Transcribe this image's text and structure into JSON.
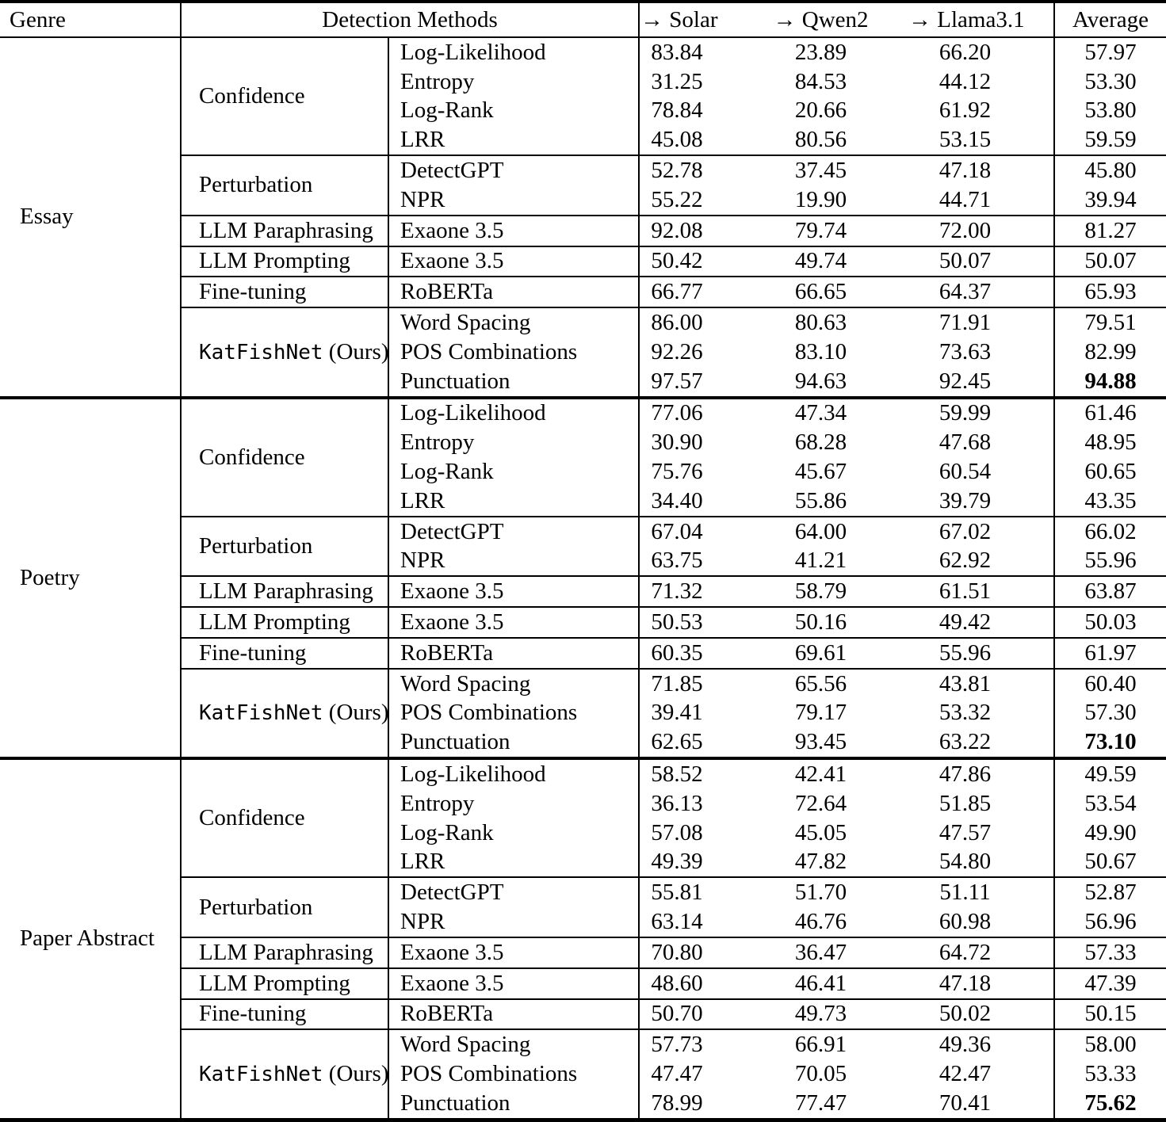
{
  "header": {
    "genre": "Genre",
    "detection_methods": "Detection Methods",
    "cols": [
      "→ Solar",
      "→ Qwen2",
      "→ Llama3.1",
      "Average"
    ]
  },
  "genres": [
    {
      "name": "Essay",
      "groups": [
        {
          "category": "Confidence",
          "rows": [
            {
              "method": "Log-Likelihood",
              "scores": [
                "83.84",
                "23.89",
                "66.20"
              ],
              "average": "57.97"
            },
            {
              "method": "Entropy",
              "scores": [
                "31.25",
                "84.53",
                "44.12"
              ],
              "average": "53.30"
            },
            {
              "method": "Log-Rank",
              "scores": [
                "78.84",
                "20.66",
                "61.92"
              ],
              "average": "53.80"
            },
            {
              "method": "LRR",
              "scores": [
                "45.08",
                "80.56",
                "53.15"
              ],
              "average": "59.59"
            }
          ]
        },
        {
          "category": "Perturbation",
          "rows": [
            {
              "method": "DetectGPT",
              "scores": [
                "52.78",
                "37.45",
                "47.18"
              ],
              "average": "45.80"
            },
            {
              "method": "NPR",
              "scores": [
                "55.22",
                "19.90",
                "44.71"
              ],
              "average": "39.94"
            }
          ]
        },
        {
          "category": "LLM Paraphrasing",
          "rows": [
            {
              "method": "Exaone 3.5",
              "scores": [
                "92.08",
                "79.74",
                "72.00"
              ],
              "average": "81.27"
            }
          ]
        },
        {
          "category": "LLM Prompting",
          "rows": [
            {
              "method": "Exaone 3.5",
              "scores": [
                "50.42",
                "49.74",
                "50.07"
              ],
              "average": "50.07"
            }
          ]
        },
        {
          "category": "Fine-tuning",
          "rows": [
            {
              "method": "RoBERTa",
              "scores": [
                "66.77",
                "66.65",
                "64.37"
              ],
              "average": "65.93"
            }
          ]
        },
        {
          "category_mono": "KatFishNet",
          "category_suffix": " (Ours)",
          "rows": [
            {
              "method": "Word Spacing",
              "scores": [
                "86.00",
                "80.63",
                "71.91"
              ],
              "average": "79.51"
            },
            {
              "method": "POS Combinations",
              "scores": [
                "92.26",
                "83.10",
                "73.63"
              ],
              "average": "82.99"
            },
            {
              "method": "Punctuation",
              "scores": [
                "97.57",
                "94.63",
                "92.45"
              ],
              "average": "94.88",
              "average_bold": true
            }
          ]
        }
      ]
    },
    {
      "name": "Poetry",
      "groups": [
        {
          "category": "Confidence",
          "rows": [
            {
              "method": "Log-Likelihood",
              "scores": [
                "77.06",
                "47.34",
                "59.99"
              ],
              "average": "61.46"
            },
            {
              "method": "Entropy",
              "scores": [
                "30.90",
                "68.28",
                "47.68"
              ],
              "average": "48.95"
            },
            {
              "method": "Log-Rank",
              "scores": [
                "75.76",
                "45.67",
                "60.54"
              ],
              "average": "60.65"
            },
            {
              "method": "LRR",
              "scores": [
                "34.40",
                "55.86",
                "39.79"
              ],
              "average": "43.35"
            }
          ]
        },
        {
          "category": "Perturbation",
          "rows": [
            {
              "method": "DetectGPT",
              "scores": [
                "67.04",
                "64.00",
                "67.02"
              ],
              "average": "66.02"
            },
            {
              "method": "NPR",
              "scores": [
                "63.75",
                "41.21",
                "62.92"
              ],
              "average": "55.96"
            }
          ]
        },
        {
          "category": "LLM Paraphrasing",
          "rows": [
            {
              "method": "Exaone 3.5",
              "scores": [
                "71.32",
                "58.79",
                "61.51"
              ],
              "average": "63.87"
            }
          ]
        },
        {
          "category": "LLM Prompting",
          "rows": [
            {
              "method": "Exaone 3.5",
              "scores": [
                "50.53",
                "50.16",
                "49.42"
              ],
              "average": "50.03"
            }
          ]
        },
        {
          "category": "Fine-tuning",
          "rows": [
            {
              "method": "RoBERTa",
              "scores": [
                "60.35",
                "69.61",
                "55.96"
              ],
              "average": "61.97"
            }
          ]
        },
        {
          "category_mono": "KatFishNet",
          "category_suffix": " (Ours)",
          "rows": [
            {
              "method": "Word Spacing",
              "scores": [
                "71.85",
                "65.56",
                "43.81"
              ],
              "average": "60.40"
            },
            {
              "method": "POS Combinations",
              "scores": [
                "39.41",
                "79.17",
                "53.32"
              ],
              "average": "57.30"
            },
            {
              "method": "Punctuation",
              "scores": [
                "62.65",
                "93.45",
                "63.22"
              ],
              "average": "73.10",
              "average_bold": true
            }
          ]
        }
      ]
    },
    {
      "name": "Paper Abstract",
      "groups": [
        {
          "category": "Confidence",
          "rows": [
            {
              "method": "Log-Likelihood",
              "scores": [
                "58.52",
                "42.41",
                "47.86"
              ],
              "average": "49.59"
            },
            {
              "method": "Entropy",
              "scores": [
                "36.13",
                "72.64",
                "51.85"
              ],
              "average": "53.54"
            },
            {
              "method": "Log-Rank",
              "scores": [
                "57.08",
                "45.05",
                "47.57"
              ],
              "average": "49.90"
            },
            {
              "method": "LRR",
              "scores": [
                "49.39",
                "47.82",
                "54.80"
              ],
              "average": "50.67"
            }
          ]
        },
        {
          "category": "Perturbation",
          "rows": [
            {
              "method": "DetectGPT",
              "scores": [
                "55.81",
                "51.70",
                "51.11"
              ],
              "average": "52.87"
            },
            {
              "method": "NPR",
              "scores": [
                "63.14",
                "46.76",
                "60.98"
              ],
              "average": "56.96"
            }
          ]
        },
        {
          "category": "LLM Paraphrasing",
          "rows": [
            {
              "method": "Exaone 3.5",
              "scores": [
                "70.80",
                "36.47",
                "64.72"
              ],
              "average": "57.33"
            }
          ]
        },
        {
          "category": "LLM Prompting",
          "rows": [
            {
              "method": "Exaone 3.5",
              "scores": [
                "48.60",
                "46.41",
                "47.18"
              ],
              "average": "47.39"
            }
          ]
        },
        {
          "category": "Fine-tuning",
          "rows": [
            {
              "method": "RoBERTa",
              "scores": [
                "50.70",
                "49.73",
                "50.02"
              ],
              "average": "50.15"
            }
          ]
        },
        {
          "category_mono": "KatFishNet",
          "category_suffix": " (Ours)",
          "rows": [
            {
              "method": "Word Spacing",
              "scores": [
                "57.73",
                "66.91",
                "49.36"
              ],
              "average": "58.00"
            },
            {
              "method": "POS Combinations",
              "scores": [
                "47.47",
                "70.05",
                "42.47"
              ],
              "average": "53.33"
            },
            {
              "method": "Punctuation",
              "scores": [
                "78.99",
                "77.47",
                "70.41"
              ],
              "average": "75.62",
              "average_bold": true
            }
          ]
        }
      ]
    }
  ]
}
